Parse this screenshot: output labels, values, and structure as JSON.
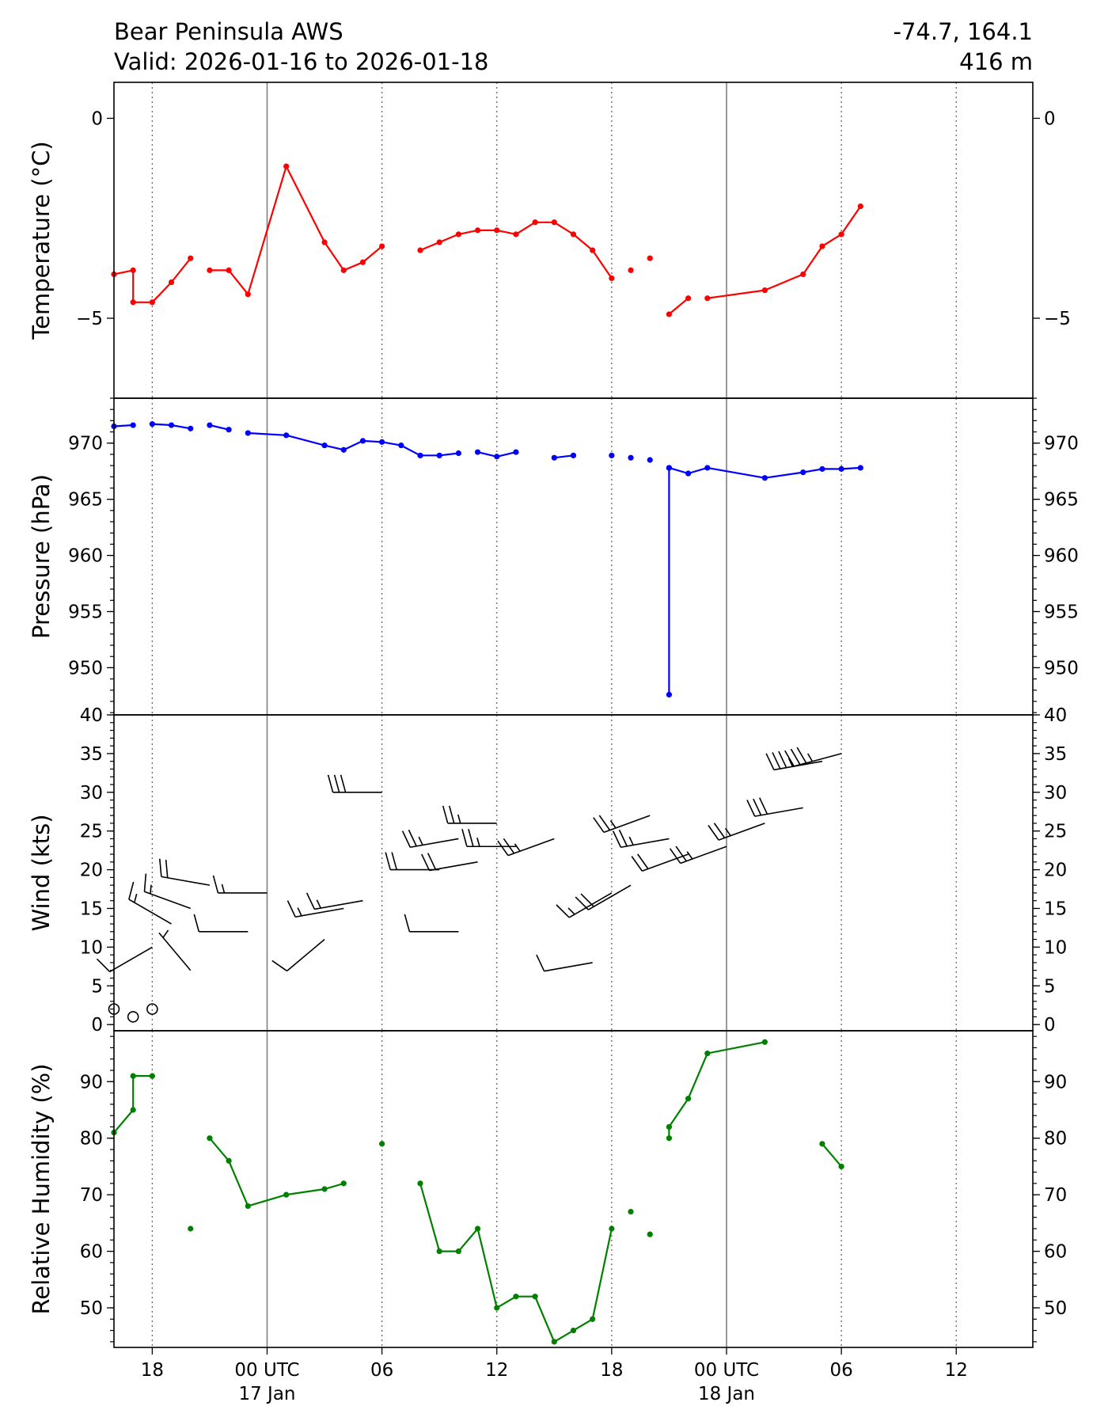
{
  "header": {
    "station": "Bear Peninsula AWS",
    "valid": "Valid: 2026-01-16 to 2026-01-18",
    "coords": "-74.7, 164.1",
    "elevation": "416 m"
  },
  "chart_data": {
    "type": "line",
    "x_ticks": [
      {
        "hour": 18,
        "label": "18",
        "sublabel": ""
      },
      {
        "hour": 24,
        "label": "00 UTC",
        "sublabel": "17 Jan"
      },
      {
        "hour": 30,
        "label": "06",
        "sublabel": ""
      },
      {
        "hour": 36,
        "label": "12",
        "sublabel": ""
      },
      {
        "hour": 42,
        "label": "18",
        "sublabel": ""
      },
      {
        "hour": 48,
        "label": "00 UTC",
        "sublabel": "18 Jan"
      },
      {
        "hour": 54,
        "label": "06",
        "sublabel": ""
      },
      {
        "hour": 60,
        "label": "12",
        "sublabel": ""
      }
    ],
    "x_range_hours": [
      16,
      64
    ],
    "panels": [
      {
        "id": "temperature",
        "ylabel": "Temperature ($^\\circ$C)",
        "color": "#ff0000",
        "ylim": [
          -7.0,
          0.9
        ],
        "yticks": [
          0,
          -5
        ],
        "ytick_labels": [
          "0",
          "−5"
        ],
        "minor_step": null,
        "points": [
          [
            16,
            -3.9
          ],
          [
            17,
            -3.8
          ],
          [
            17,
            -4.6
          ],
          [
            18,
            -4.6
          ],
          [
            19,
            -4.1
          ],
          [
            20,
            -3.5
          ],
          null,
          [
            21,
            -3.8
          ],
          [
            22,
            -3.8
          ],
          [
            23,
            -4.4
          ],
          [
            25,
            -1.2
          ],
          [
            27,
            -3.1
          ],
          [
            28,
            -3.8
          ],
          [
            29,
            -3.6
          ],
          [
            30,
            -3.2
          ],
          null,
          [
            32,
            -3.3
          ],
          [
            33,
            -3.1
          ],
          [
            34,
            -2.9
          ],
          [
            35,
            -2.8
          ],
          [
            36,
            -2.8
          ],
          [
            37,
            -2.9
          ],
          [
            38,
            -2.6
          ],
          [
            39,
            -2.6
          ],
          [
            40,
            -2.9
          ],
          [
            41,
            -3.3
          ],
          [
            42,
            -4.0
          ],
          null,
          [
            43,
            -3.8
          ],
          null,
          [
            44,
            -3.5
          ],
          null,
          [
            45,
            -4.9
          ],
          [
            46,
            -4.5
          ],
          null,
          [
            47,
            -4.5
          ],
          [
            50,
            -4.3
          ],
          [
            52,
            -3.9
          ],
          [
            53,
            -3.2
          ],
          [
            54,
            -2.9
          ],
          [
            55,
            -2.2
          ]
        ]
      },
      {
        "id": "pressure",
        "ylabel": "Pressure (hPa)",
        "color": "#0000ff",
        "ylim": [
          945.8,
          974
        ],
        "yticks": [
          950,
          955,
          960,
          965,
          970
        ],
        "ytick_labels": [
          "950",
          "955",
          "960",
          "965",
          "970"
        ],
        "minor_step": 1,
        "points": [
          [
            16,
            971.5
          ],
          [
            17,
            971.6
          ],
          null,
          [
            18,
            971.7
          ],
          [
            19,
            971.6
          ],
          [
            20,
            971.3
          ],
          null,
          [
            21,
            971.6
          ],
          [
            22,
            971.2
          ],
          null,
          [
            23,
            970.9
          ],
          [
            25,
            970.7
          ],
          [
            27,
            969.8
          ],
          [
            28,
            969.4
          ],
          [
            29,
            970.2
          ],
          [
            30,
            970.1
          ],
          [
            31,
            969.8
          ],
          [
            32,
            968.9
          ],
          [
            33,
            968.9
          ],
          [
            34,
            969.1
          ],
          null,
          [
            35,
            969.2
          ],
          [
            36,
            968.8
          ],
          [
            37,
            969.2
          ],
          null,
          [
            39,
            968.7
          ],
          [
            40,
            968.9
          ],
          null,
          [
            42,
            968.9
          ],
          null,
          [
            43,
            968.7
          ],
          null,
          [
            44,
            968.5
          ],
          null,
          [
            45,
            967.8
          ],
          [
            45,
            947.6
          ],
          null,
          [
            45,
            967.8
          ],
          [
            46,
            967.3
          ],
          [
            47,
            967.8
          ],
          [
            50,
            966.9
          ],
          [
            52,
            967.4
          ],
          [
            53,
            967.7
          ],
          [
            54,
            967.7
          ],
          [
            55,
            967.8
          ]
        ]
      },
      {
        "id": "wind",
        "ylabel": "Wind (kts)",
        "color": "#000000",
        "ylim": [
          -0.8,
          40
        ],
        "yticks": [
          0,
          5,
          10,
          15,
          20,
          25,
          30,
          35,
          40
        ],
        "ytick_labels": [
          "0",
          "5",
          "10",
          "15",
          "20",
          "25",
          "30",
          "35",
          "40"
        ],
        "minor_step": 1,
        "barbs": [
          [
            16,
            2,
            0
          ],
          [
            17,
            1,
            0
          ],
          [
            18,
            2,
            0
          ],
          [
            18,
            10,
            240
          ],
          [
            19,
            13,
            300
          ],
          [
            20,
            7,
            320
          ],
          [
            20,
            15,
            290
          ],
          [
            21,
            18,
            280
          ],
          [
            23,
            12,
            270
          ],
          [
            24,
            17,
            270
          ],
          [
            27,
            11,
            230
          ],
          [
            28,
            15,
            260
          ],
          [
            29,
            16,
            260
          ],
          [
            30,
            30,
            270
          ],
          [
            33,
            20,
            270
          ],
          [
            34,
            24,
            260
          ],
          [
            34,
            12,
            270
          ],
          [
            35,
            21,
            260
          ],
          [
            36,
            26,
            270
          ],
          [
            37,
            23,
            270
          ],
          [
            39,
            24,
            250
          ],
          [
            41,
            8,
            260
          ],
          [
            42,
            17,
            240
          ],
          [
            43,
            18,
            240
          ],
          [
            44,
            27,
            250
          ],
          [
            45,
            24,
            260
          ],
          [
            46,
            22,
            250
          ],
          [
            48,
            23,
            250
          ],
          [
            50,
            26,
            250
          ],
          [
            52,
            28,
            260
          ],
          [
            53,
            34,
            260
          ],
          [
            54,
            35,
            255
          ]
        ]
      },
      {
        "id": "humidity",
        "ylabel": "Relative Humidity (%)",
        "color": "#008000",
        "ylim": [
          43,
          99
        ],
        "yticks": [
          50,
          60,
          70,
          80,
          90
        ],
        "ytick_labels": [
          "50",
          "60",
          "70",
          "80",
          "90"
        ],
        "minor_step": 2,
        "points": [
          [
            16,
            81
          ],
          [
            17,
            85
          ],
          [
            17,
            91
          ],
          [
            18,
            91
          ],
          null,
          [
            20,
            64
          ],
          null,
          [
            21,
            80
          ],
          [
            22,
            76
          ],
          [
            23,
            68
          ],
          [
            25,
            70
          ],
          [
            27,
            71
          ],
          [
            28,
            72
          ],
          null,
          [
            30,
            79
          ],
          null,
          [
            32,
            72
          ],
          [
            33,
            60
          ],
          [
            34,
            60
          ],
          [
            35,
            64
          ],
          [
            36,
            50
          ],
          [
            37,
            52
          ],
          [
            38,
            52
          ],
          [
            39,
            44
          ],
          [
            40,
            46
          ],
          [
            41,
            48
          ],
          [
            42,
            64
          ],
          null,
          [
            43,
            67
          ],
          null,
          [
            44,
            63
          ],
          null,
          [
            45,
            80
          ],
          [
            45,
            82
          ],
          [
            46,
            87
          ],
          [
            47,
            95
          ],
          [
            50,
            97
          ],
          null,
          [
            53,
            79
          ],
          [
            54,
            75
          ]
        ]
      }
    ]
  }
}
